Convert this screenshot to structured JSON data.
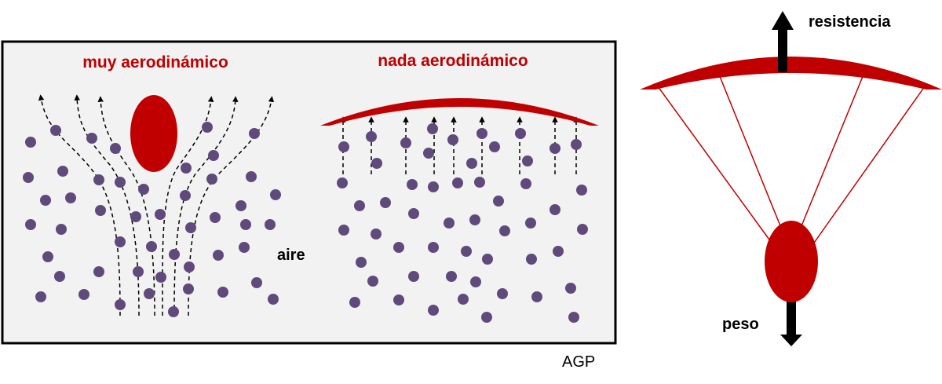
{
  "left_panel": {
    "title_streamlined": "muy aerodinámico",
    "title_not_streamlined": "nada aerodinámico",
    "air_label": "aire"
  },
  "parachute": {
    "drag_label": "resistencia",
    "weight_label": "peso"
  },
  "credit": "AGP",
  "colors": {
    "red": "#c00000",
    "particle": "#604a7b",
    "box_fill": "#f2f2f2"
  }
}
